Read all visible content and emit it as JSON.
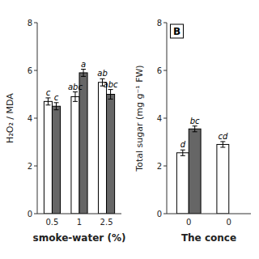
{
  "chart_data": [
    {
      "type": "bar",
      "x_label": "smoke-water (%)",
      "y_label": "H₂O₂ / MDA",
      "categories": [
        "0.5",
        "1",
        "2.5"
      ],
      "series": [
        {
          "color": "#ffffff",
          "values": [
            4.7,
            4.9,
            5.5
          ],
          "errors": [
            0.15,
            0.2,
            0.15
          ],
          "letters": [
            "c",
            "abc",
            "ab"
          ]
        },
        {
          "color": "#666666",
          "values": [
            4.5,
            5.9,
            5.0
          ],
          "errors": [
            0.15,
            0.15,
            0.2
          ],
          "letters": [
            "c",
            "a",
            "abc"
          ]
        }
      ],
      "ylim": [
        0,
        8
      ],
      "yticks": [
        0,
        2,
        4,
        6,
        8
      ]
    },
    {
      "type": "bar",
      "title": "B",
      "x_label": "The conce",
      "y_label": "Total sugar (mg g⁻¹ FW)",
      "categories": [
        "0",
        "0"
      ],
      "series": [
        {
          "color": "#ffffff",
          "values": [
            2.55,
            2.9
          ],
          "errors": [
            0.12,
            0.12
          ],
          "letters": [
            "d",
            "cd"
          ]
        },
        {
          "color": "#666666",
          "values": [
            3.55,
            null
          ],
          "errors": [
            0.12,
            null
          ],
          "letters": [
            "bc",
            null
          ]
        }
      ],
      "ylim": [
        0,
        8
      ],
      "yticks": [
        0,
        2,
        4,
        6,
        8
      ]
    }
  ]
}
